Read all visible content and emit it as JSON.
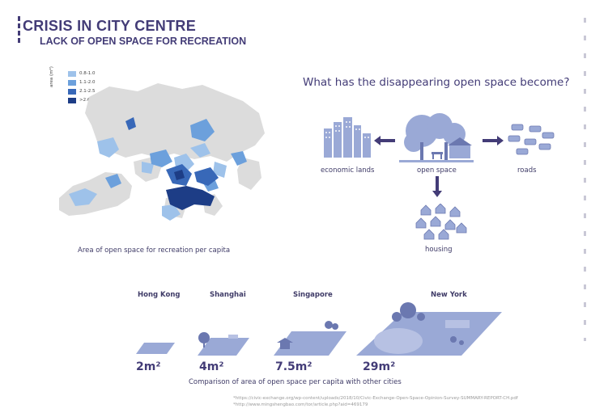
{
  "header": {
    "title": "CRISIS IN CITY CENTRE",
    "subtitle": "LACK OF OPEN SPACE FOR RECREATION"
  },
  "map": {
    "caption": "Area of open space for recreation per capita",
    "legend": {
      "title": "area (m²)",
      "items": [
        {
          "label": "0.8-1.0",
          "color": "#9ec2ea"
        },
        {
          "label": "1.1-2.0",
          "color": "#6ca0dc"
        },
        {
          "label": "2.1-2.5",
          "color": "#3868b8"
        },
        {
          "label": ">2.6",
          "color": "#1d3d86"
        }
      ]
    },
    "land_color": "#dcdcdc"
  },
  "flow": {
    "question": "What has the disappearing open space become?",
    "labels": {
      "center": "open space",
      "left": "economic lands",
      "right": "roads",
      "bottom": "housing"
    },
    "icon_color": "#9aa9d6"
  },
  "comparison": {
    "caption": "Comparison of area of open space per capita with other cities",
    "cities": [
      {
        "name": "Hong Kong",
        "value": "2m²"
      },
      {
        "name": "Shanghai",
        "value": "4m²"
      },
      {
        "name": "Singapore",
        "value": "7.5m²"
      },
      {
        "name": "New York",
        "value": "29m²"
      }
    ]
  },
  "sources": [
    "*https://civic-exchange.org/wp-content/uploads/2018/10/Civic-Exchange-Open-Space-Opinion-Survey-SUMMARY-REPORT-CH.pdf",
    "*http://www.mingshengbao.com/tor/article.php?aid=469179"
  ]
}
